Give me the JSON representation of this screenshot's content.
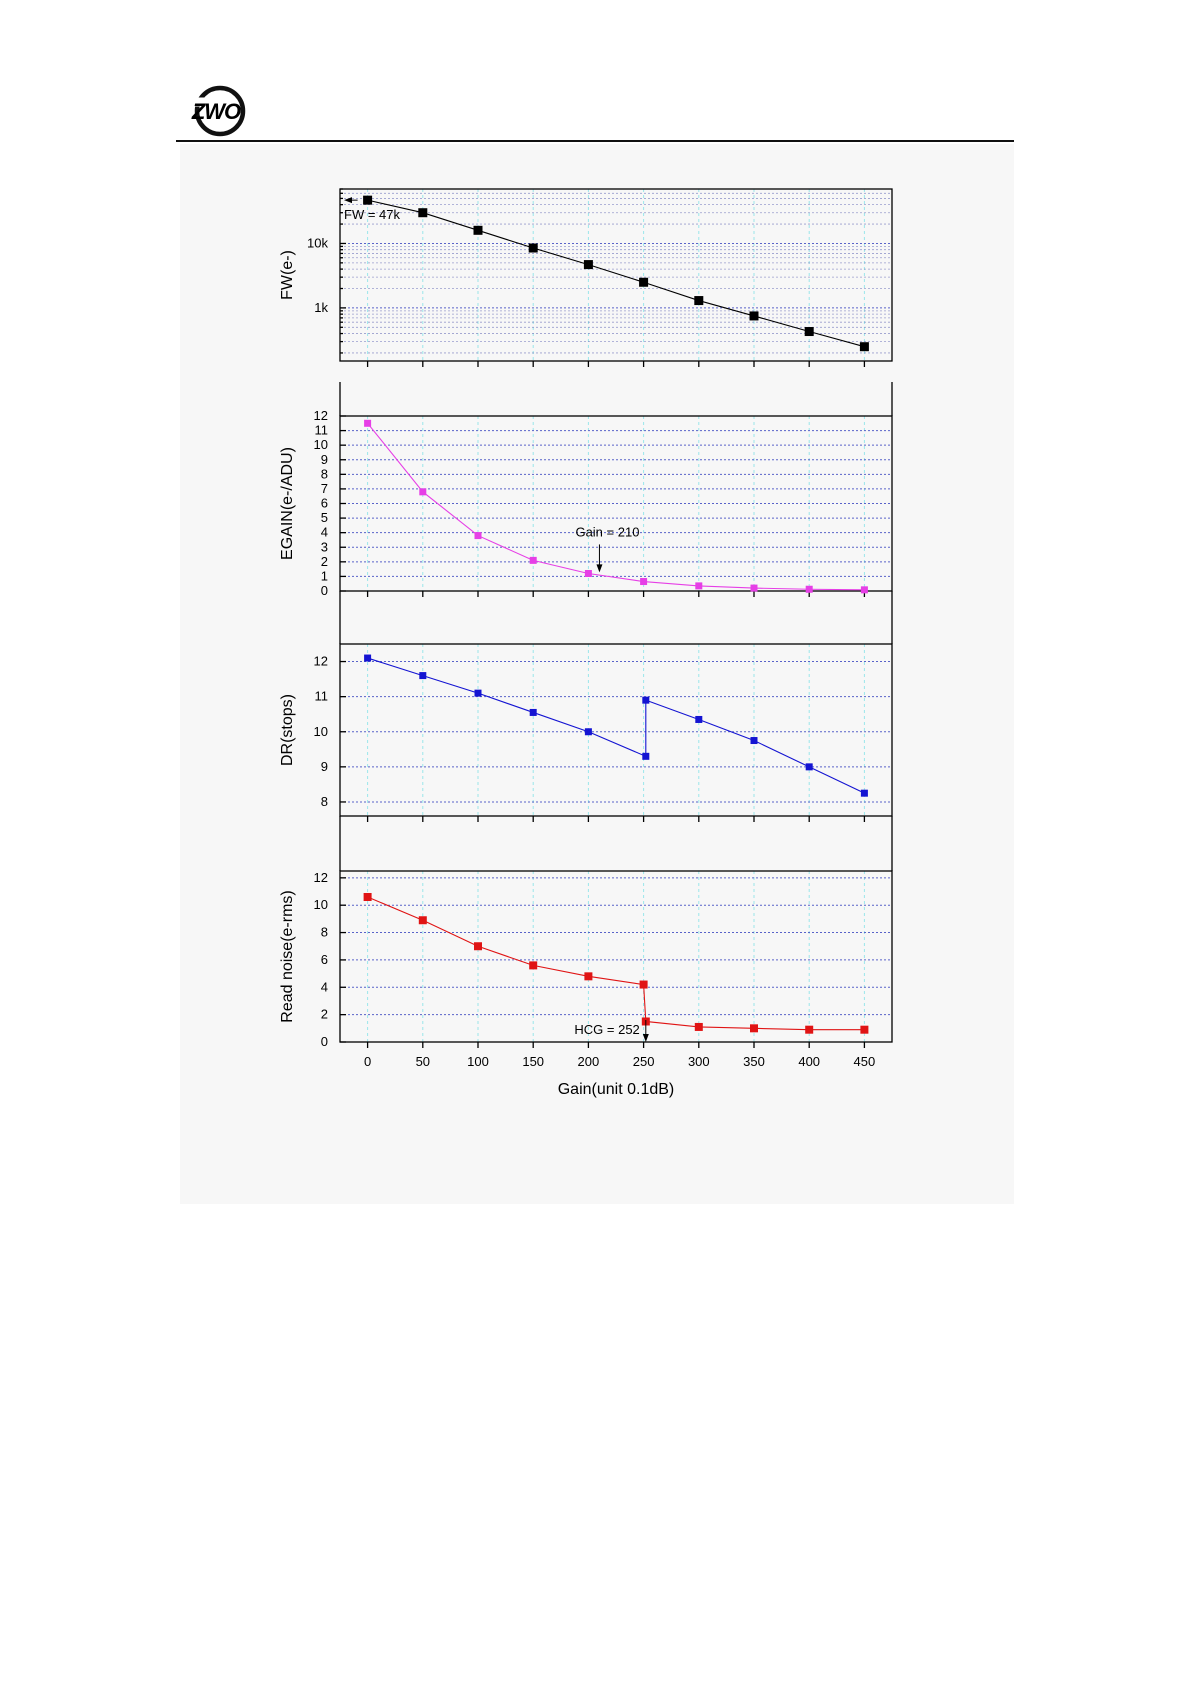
{
  "header": {
    "logo_text": "ZWO",
    "colors": {
      "logo": "#111111",
      "rule": "#111111"
    }
  },
  "colors": {
    "fw": "#000000",
    "egain": "#e63fe6",
    "dr": "#1414d2",
    "read_noise": "#e01414",
    "grid_vertical": "#9be6ea",
    "grid_horizontal": "#5963c9",
    "panel_background": "#f7f7f7"
  },
  "chart_data": [
    {
      "type": "line",
      "ylabel": "FW(e-)",
      "yscale": "log",
      "x": [
        0,
        50,
        100,
        150,
        200,
        250,
        300,
        350,
        400,
        450
      ],
      "values": [
        47000,
        30000,
        16000,
        8500,
        4700,
        2500,
        1300,
        750,
        430,
        250
      ],
      "ylim": [
        150,
        70000
      ],
      "yticks": [
        1000,
        10000
      ],
      "yticklabels": [
        "1k",
        "10k"
      ],
      "grid": true,
      "marker": "square",
      "annotations": [
        {
          "text": "FW = 47k",
          "x": 0,
          "y": 47000,
          "arrow": "left"
        }
      ]
    },
    {
      "type": "line",
      "ylabel": "EGAIN(e-/ADU)",
      "x": [
        0,
        50,
        100,
        150,
        200,
        250,
        300,
        350,
        400,
        450
      ],
      "values": [
        11.5,
        6.8,
        3.8,
        2.1,
        1.2,
        0.65,
        0.35,
        0.2,
        0.12,
        0.08
      ],
      "ylim": [
        0,
        12
      ],
      "yticks": [
        0,
        1,
        2,
        3,
        4,
        5,
        6,
        7,
        8,
        9,
        10,
        11,
        12
      ],
      "grid": true,
      "marker": "square",
      "annotations": [
        {
          "text": "Gain = 210",
          "x": 210,
          "y": 1.0,
          "arrow": "down"
        }
      ]
    },
    {
      "type": "line",
      "ylabel": "DR(stops)",
      "x": [
        0,
        50,
        100,
        150,
        200,
        252,
        252,
        300,
        350,
        400,
        450
      ],
      "values": [
        12.1,
        11.6,
        11.1,
        10.55,
        10.0,
        9.3,
        10.9,
        10.35,
        9.75,
        9.0,
        8.25
      ],
      "ylim": [
        7.6,
        12.5
      ],
      "yticks": [
        8,
        9,
        10,
        11,
        12
      ],
      "grid": true,
      "marker": "square"
    },
    {
      "type": "line",
      "ylabel": "Read noise(e-rms)",
      "xlabel": "Gain(unit 0.1dB)",
      "x": [
        0,
        50,
        100,
        150,
        200,
        250,
        252,
        300,
        350,
        400,
        450
      ],
      "values": [
        10.6,
        8.9,
        7.0,
        5.6,
        4.8,
        4.2,
        1.5,
        1.1,
        1.0,
        0.9,
        0.9
      ],
      "ylim": [
        0,
        12.5
      ],
      "yticks": [
        0,
        2,
        4,
        6,
        8,
        10,
        12
      ],
      "xticks": [
        0,
        50,
        100,
        150,
        200,
        250,
        300,
        350,
        400,
        450
      ],
      "grid": true,
      "marker": "square",
      "annotations": [
        {
          "text": "HCG = 252",
          "x": 252,
          "y": 0,
          "arrow": "down"
        }
      ]
    }
  ]
}
